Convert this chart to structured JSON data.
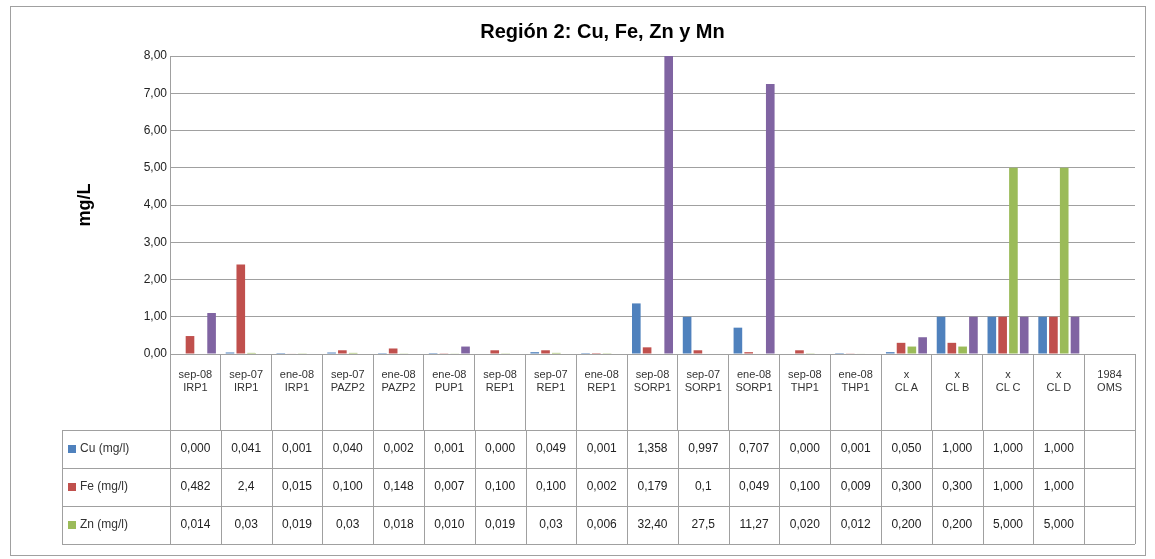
{
  "chart_data": {
    "type": "bar",
    "title": "Región 2: Cu, Fe, Zn y Mn",
    "ylabel": "mg/L",
    "categories": [
      "sep-08\nIRP1",
      "sep-07\nIRP1",
      "ene-08\nIRP1",
      "sep-07\nPAZP2",
      "ene-08\nPAZP2",
      "ene-08\nPUP1",
      "sep-08\nREP1",
      "sep-07\nREP1",
      "ene-08\nREP1",
      "sep-08\nSORP1",
      "sep-07\nSORP1",
      "ene-08\nSORP1",
      "sep-08\nTHP1",
      "ene-08\nTHP1",
      "x\nCL A",
      "x\nCL B",
      "x\nCL C",
      "x\nCL D",
      "1984\nOMS"
    ],
    "series": [
      {
        "name": "Cu (mg/l)",
        "color": "#4f81bd",
        "values": [
          0.0,
          0.041,
          0.001,
          0.04,
          0.002,
          0.001,
          0.0,
          0.049,
          0.001,
          1.358,
          0.997,
          0.707,
          0.0,
          0.001,
          0.05,
          1.0,
          1.0,
          1.0,
          null
        ],
        "value_labels": [
          "0,000",
          "0,041",
          "0,001",
          "0,040",
          "0,002",
          "0,001",
          "0,000",
          "0,049",
          "0,001",
          "1,358",
          "0,997",
          "0,707",
          "0,000",
          "0,001",
          "0,050",
          "1,000",
          "1,000",
          "1,000",
          null
        ]
      },
      {
        "name": "Fe (mg/l)",
        "color": "#c0504d",
        "values": [
          0.482,
          2.4,
          0.015,
          0.1,
          0.148,
          0.007,
          0.1,
          0.1,
          0.002,
          0.179,
          0.1,
          0.049,
          0.1,
          0.009,
          0.3,
          0.3,
          1.0,
          1.0,
          null
        ],
        "value_labels": [
          "0,482",
          "2,4",
          "0,015",
          "0,100",
          "0,148",
          "0,007",
          "0,100",
          "0,100",
          "0,002",
          "0,179",
          "0,1",
          "0,049",
          "0,100",
          "0,009",
          "0,300",
          "0,300",
          "1,000",
          "1,000",
          null
        ]
      },
      {
        "name": "Zn (mg/l)",
        "color": "#9bbb59",
        "values": [
          0.014,
          0.03,
          0.019,
          0.03,
          0.018,
          0.01,
          0.019,
          0.03,
          0.006,
          null,
          null,
          null,
          0.02,
          0.012,
          0.2,
          0.2,
          5.0,
          5.0,
          null
        ],
        "value_labels": [
          "0,014",
          "0,03",
          "0,019",
          "0,03",
          "0,018",
          "0,010",
          "0,019",
          "0,03",
          "0,006",
          "32,40",
          "27,5",
          "11,27",
          "0,020",
          "0,012",
          "0,200",
          "0,200",
          "5,000",
          "5,000",
          null
        ]
      },
      {
        "color": "#8064a2",
        "values": [
          1.1,
          0,
          0,
          0,
          0,
          0.2,
          0,
          0,
          0,
          8,
          null,
          7.25,
          0,
          0,
          0.45,
          1,
          1,
          1,
          null
        ]
      }
    ],
    "ylim": [
      0,
      8
    ],
    "yticks": [
      {
        "value": 0,
        "label": "0,00"
      },
      {
        "value": 1,
        "label": "1,00"
      },
      {
        "value": 2,
        "label": "2,00"
      },
      {
        "value": 3,
        "label": "3,00"
      },
      {
        "value": 4,
        "label": "4,00"
      },
      {
        "value": 5,
        "label": "5,00"
      },
      {
        "value": 6,
        "label": "6,00"
      },
      {
        "value": 7,
        "label": "7,00"
      },
      {
        "value": 8,
        "label": "8,00"
      }
    ],
    "grid": "y",
    "legend": "bottom"
  }
}
